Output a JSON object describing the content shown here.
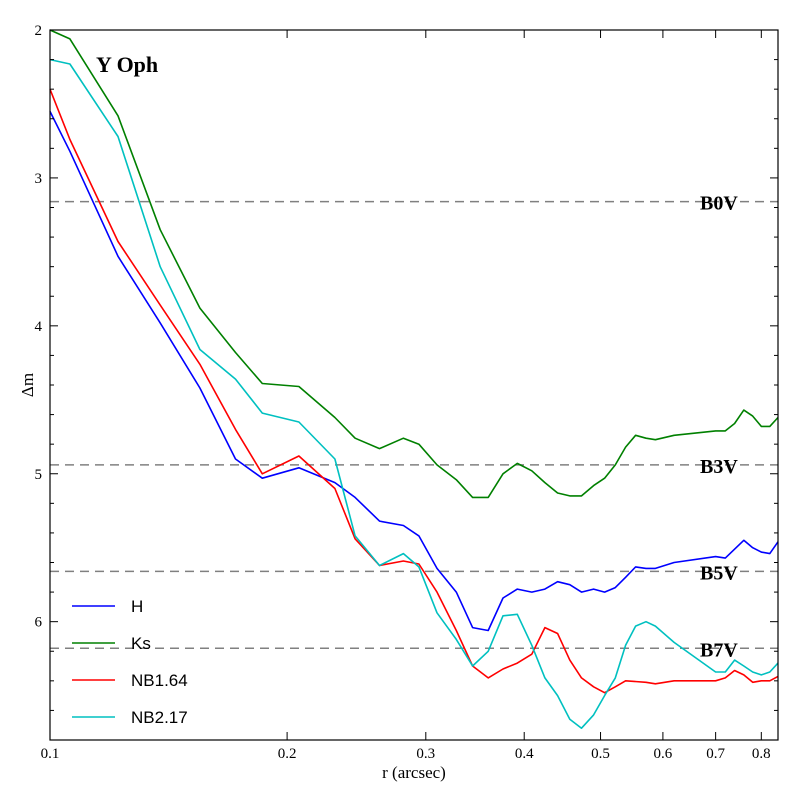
{
  "chart_data": {
    "type": "line",
    "title": "Y Oph",
    "xlabel": "r (arcsec)",
    "ylabel": "Δm",
    "xscale": "log",
    "xlim": [
      0.1,
      0.84
    ],
    "ylim": [
      2.0,
      6.8
    ],
    "y_inverted": true,
    "grid": false,
    "legend_position": "bottom-left",
    "x_ticks": [
      {
        "value": 0.1,
        "label": "0.1"
      },
      {
        "value": 0.2,
        "label": "0.2"
      },
      {
        "value": 0.3,
        "label": "0.3"
      },
      {
        "value": 0.4,
        "label": "0.4"
      },
      {
        "value": 0.5,
        "label": "0.5"
      },
      {
        "value": 0.6,
        "label": "0.6"
      },
      {
        "value": 0.7,
        "label": "0.7"
      },
      {
        "value": 0.8,
        "label": "0.8"
      }
    ],
    "y_ticks": [
      {
        "value": 2,
        "label": "2"
      },
      {
        "value": 3,
        "label": "3"
      },
      {
        "value": 4,
        "label": "4"
      },
      {
        "value": 5,
        "label": "5"
      },
      {
        "value": 6,
        "label": "6"
      }
    ],
    "reference_lines": [
      {
        "label": "B0V",
        "y": 3.16
      },
      {
        "label": "B3V",
        "y": 4.94
      },
      {
        "label": "B5V",
        "y": 5.66
      },
      {
        "label": "B7V",
        "y": 6.18
      }
    ],
    "series": [
      {
        "name": "H",
        "color": "#0000ff",
        "points": [
          [
            0.1,
            2.55
          ],
          [
            0.106,
            2.82
          ],
          [
            0.122,
            3.53
          ],
          [
            0.138,
            3.98
          ],
          [
            0.155,
            4.42
          ],
          [
            0.172,
            4.9
          ],
          [
            0.186,
            5.03
          ],
          [
            0.207,
            4.96
          ],
          [
            0.23,
            5.06
          ],
          [
            0.244,
            5.16
          ],
          [
            0.262,
            5.32
          ],
          [
            0.281,
            5.35
          ],
          [
            0.294,
            5.42
          ],
          [
            0.31,
            5.64
          ],
          [
            0.328,
            5.8
          ],
          [
            0.344,
            6.04
          ],
          [
            0.36,
            6.06
          ],
          [
            0.376,
            5.84
          ],
          [
            0.392,
            5.78
          ],
          [
            0.409,
            5.8
          ],
          [
            0.425,
            5.78
          ],
          [
            0.441,
            5.73
          ],
          [
            0.457,
            5.75
          ],
          [
            0.473,
            5.8
          ],
          [
            0.49,
            5.78
          ],
          [
            0.506,
            5.8
          ],
          [
            0.522,
            5.77
          ],
          [
            0.538,
            5.7
          ],
          [
            0.554,
            5.63
          ],
          [
            0.571,
            5.64
          ],
          [
            0.587,
            5.64
          ],
          [
            0.62,
            5.6
          ],
          [
            0.7,
            5.56
          ],
          [
            0.72,
            5.57
          ],
          [
            0.76,
            5.45
          ],
          [
            0.78,
            5.5
          ],
          [
            0.8,
            5.53
          ],
          [
            0.82,
            5.54
          ],
          [
            0.84,
            5.46
          ]
        ]
      },
      {
        "name": "Ks",
        "color": "#008000",
        "points": [
          [
            0.1,
            2.0
          ],
          [
            0.106,
            2.06
          ],
          [
            0.122,
            2.58
          ],
          [
            0.138,
            3.35
          ],
          [
            0.155,
            3.88
          ],
          [
            0.172,
            4.18
          ],
          [
            0.186,
            4.39
          ],
          [
            0.207,
            4.41
          ],
          [
            0.23,
            4.62
          ],
          [
            0.244,
            4.76
          ],
          [
            0.262,
            4.83
          ],
          [
            0.281,
            4.76
          ],
          [
            0.294,
            4.8
          ],
          [
            0.31,
            4.94
          ],
          [
            0.328,
            5.04
          ],
          [
            0.344,
            5.16
          ],
          [
            0.36,
            5.16
          ],
          [
            0.376,
            5.0
          ],
          [
            0.392,
            4.93
          ],
          [
            0.409,
            4.98
          ],
          [
            0.425,
            5.06
          ],
          [
            0.441,
            5.13
          ],
          [
            0.457,
            5.15
          ],
          [
            0.473,
            5.15
          ],
          [
            0.49,
            5.08
          ],
          [
            0.506,
            5.03
          ],
          [
            0.522,
            4.94
          ],
          [
            0.538,
            4.82
          ],
          [
            0.554,
            4.74
          ],
          [
            0.571,
            4.76
          ],
          [
            0.587,
            4.77
          ],
          [
            0.62,
            4.74
          ],
          [
            0.7,
            4.71
          ],
          [
            0.72,
            4.71
          ],
          [
            0.74,
            4.66
          ],
          [
            0.76,
            4.57
          ],
          [
            0.78,
            4.61
          ],
          [
            0.8,
            4.68
          ],
          [
            0.82,
            4.68
          ],
          [
            0.84,
            4.62
          ]
        ]
      },
      {
        "name": "NB1.64",
        "color": "#ff0000",
        "points": [
          [
            0.1,
            2.4
          ],
          [
            0.106,
            2.74
          ],
          [
            0.122,
            3.43
          ],
          [
            0.138,
            3.86
          ],
          [
            0.155,
            4.26
          ],
          [
            0.172,
            4.7
          ],
          [
            0.186,
            5.0
          ],
          [
            0.207,
            4.88
          ],
          [
            0.23,
            5.1
          ],
          [
            0.244,
            5.44
          ],
          [
            0.262,
            5.62
          ],
          [
            0.281,
            5.59
          ],
          [
            0.294,
            5.61
          ],
          [
            0.31,
            5.8
          ],
          [
            0.328,
            6.06
          ],
          [
            0.344,
            6.3
          ],
          [
            0.36,
            6.38
          ],
          [
            0.376,
            6.32
          ],
          [
            0.392,
            6.28
          ],
          [
            0.409,
            6.22
          ],
          [
            0.425,
            6.04
          ],
          [
            0.441,
            6.08
          ],
          [
            0.457,
            6.26
          ],
          [
            0.473,
            6.38
          ],
          [
            0.49,
            6.44
          ],
          [
            0.506,
            6.48
          ],
          [
            0.522,
            6.44
          ],
          [
            0.538,
            6.4
          ],
          [
            0.571,
            6.41
          ],
          [
            0.587,
            6.42
          ],
          [
            0.62,
            6.4
          ],
          [
            0.7,
            6.4
          ],
          [
            0.72,
            6.38
          ],
          [
            0.74,
            6.33
          ],
          [
            0.76,
            6.36
          ],
          [
            0.78,
            6.41
          ],
          [
            0.8,
            6.4
          ],
          [
            0.82,
            6.4
          ],
          [
            0.84,
            6.37
          ]
        ]
      },
      {
        "name": "NB2.17",
        "color": "#00c0c0",
        "points": [
          [
            0.1,
            2.2
          ],
          [
            0.106,
            2.23
          ],
          [
            0.122,
            2.72
          ],
          [
            0.138,
            3.6
          ],
          [
            0.155,
            4.16
          ],
          [
            0.172,
            4.36
          ],
          [
            0.186,
            4.59
          ],
          [
            0.207,
            4.65
          ],
          [
            0.23,
            4.9
          ],
          [
            0.244,
            5.42
          ],
          [
            0.262,
            5.62
          ],
          [
            0.281,
            5.54
          ],
          [
            0.294,
            5.63
          ],
          [
            0.31,
            5.94
          ],
          [
            0.328,
            6.12
          ],
          [
            0.344,
            6.3
          ],
          [
            0.36,
            6.2
          ],
          [
            0.376,
            5.96
          ],
          [
            0.392,
            5.95
          ],
          [
            0.409,
            6.16
          ],
          [
            0.425,
            6.38
          ],
          [
            0.441,
            6.5
          ],
          [
            0.457,
            6.66
          ],
          [
            0.473,
            6.72
          ],
          [
            0.49,
            6.63
          ],
          [
            0.506,
            6.5
          ],
          [
            0.522,
            6.38
          ],
          [
            0.538,
            6.16
          ],
          [
            0.554,
            6.03
          ],
          [
            0.571,
            6.0
          ],
          [
            0.587,
            6.03
          ],
          [
            0.62,
            6.14
          ],
          [
            0.7,
            6.34
          ],
          [
            0.72,
            6.34
          ],
          [
            0.74,
            6.26
          ],
          [
            0.76,
            6.3
          ],
          [
            0.78,
            6.34
          ],
          [
            0.8,
            6.36
          ],
          [
            0.82,
            6.34
          ],
          [
            0.84,
            6.28
          ]
        ]
      }
    ]
  }
}
